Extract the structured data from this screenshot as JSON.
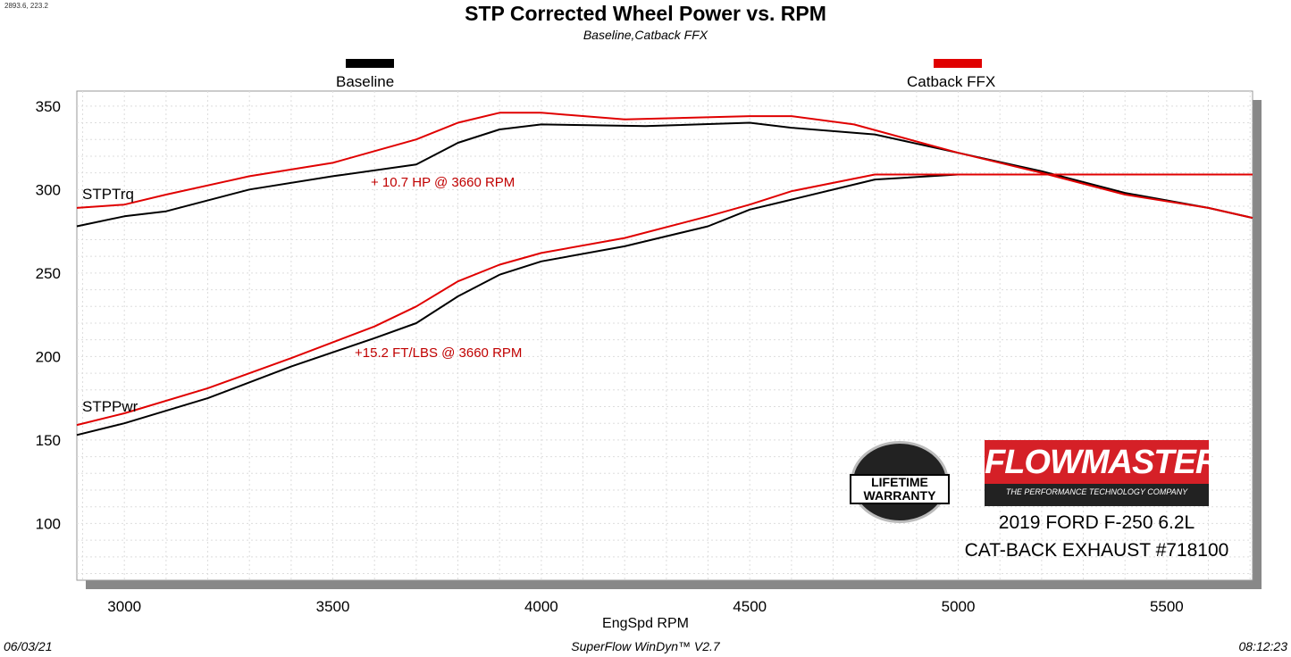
{
  "coordinate_readout": "2893.6, 223.2",
  "footer": {
    "date": "06/03/21",
    "software": "SuperFlow WinDyn™  V2.7",
    "time": "08:12:23"
  },
  "logos": {
    "warranty": "STAINLESS STEEL FLOWMASTER LIMITED LIFETIME WARRANTY",
    "brand": "FLOWMASTER",
    "brand_tagline": "THE PERFORMANCE TECHNOLOGY COMPANY"
  },
  "vehicle": {
    "line1": "2019 FORD F-250 6.2L",
    "line2": "CAT-BACK EXHAUST #718100"
  },
  "chart_data": {
    "type": "line",
    "title": "STP Corrected Wheel Power vs. RPM",
    "subtitle": "Baseline,Catback FFX",
    "xlabel": "EngSpd  RPM",
    "ylabel": "",
    "xlim": [
      2886,
      5706
    ],
    "ylim": [
      66,
      359
    ],
    "xticks": [
      3000,
      3500,
      4000,
      4500,
      5000,
      5500
    ],
    "yticks": [
      100,
      150,
      200,
      250,
      300,
      350
    ],
    "grid": true,
    "legend": "top",
    "legend_entries": [
      {
        "name": "Baseline",
        "color": "#000000"
      },
      {
        "name": "Catback FFX",
        "color": "#e00000"
      }
    ],
    "curve_labels": {
      "torque": "STPTrq",
      "power": "STPPwr"
    },
    "annotations": {
      "hp_gain": "+ 10.7 HP @ 3660 RPM",
      "tq_gain": "+15.2 FT/LBS @ 3660 RPM",
      "annotation_color": "#c00000"
    },
    "series": [
      {
        "name": "Baseline STPTrq",
        "color": "#000000",
        "x": [
          2886,
          3000,
          3100,
          3300,
          3500,
          3700,
          3800,
          3900,
          4000,
          4250,
          4500,
          4600,
          4800,
          5000,
          5200,
          5400,
          5600,
          5706
        ],
        "y": [
          278,
          284,
          287,
          300,
          308,
          315,
          328,
          336,
          339,
          338,
          340,
          337,
          333,
          322,
          311,
          298,
          289,
          283
        ]
      },
      {
        "name": "Catback FFX STPTrq",
        "color": "#e00000",
        "x": [
          2886,
          3000,
          3100,
          3300,
          3500,
          3700,
          3800,
          3900,
          4000,
          4200,
          4500,
          4600,
          4750,
          5000,
          5200,
          5400,
          5600,
          5706
        ],
        "y": [
          289,
          291,
          297,
          308,
          316,
          330,
          340,
          346,
          346,
          342,
          344,
          344,
          339,
          322,
          310,
          297,
          289,
          283
        ]
      },
      {
        "name": "Baseline STPPwr",
        "color": "#000000",
        "x": [
          2886,
          3000,
          3200,
          3400,
          3600,
          3700,
          3800,
          3900,
          4000,
          4200,
          4400,
          4500,
          4600,
          4800,
          5000,
          5200,
          5706
        ],
        "y": [
          153,
          160,
          175,
          194,
          211,
          220,
          236,
          249,
          257,
          266,
          278,
          288,
          294,
          306,
          309,
          309,
          309
        ]
      },
      {
        "name": "Catback FFX STPPwr",
        "color": "#e00000",
        "x": [
          2886,
          3000,
          3200,
          3400,
          3600,
          3700,
          3800,
          3900,
          4000,
          4200,
          4400,
          4500,
          4600,
          4800,
          5000,
          5706
        ],
        "y": [
          159,
          166,
          181,
          199,
          218,
          230,
          245,
          255,
          262,
          271,
          284,
          291,
          299,
          309,
          309,
          309
        ]
      }
    ]
  }
}
